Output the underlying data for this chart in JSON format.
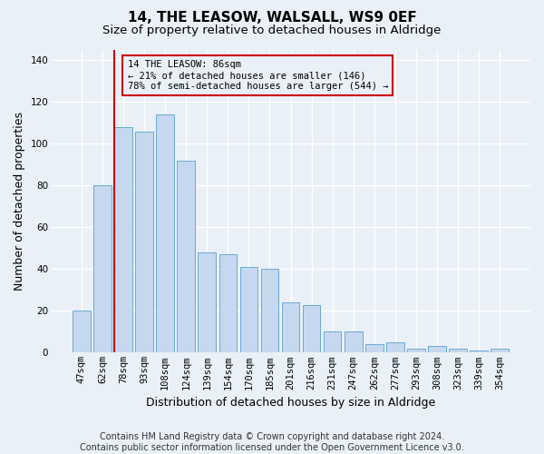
{
  "title": "14, THE LEASOW, WALSALL, WS9 0EF",
  "subtitle": "Size of property relative to detached houses in Aldridge",
  "xlabel": "Distribution of detached houses by size in Aldridge",
  "ylabel": "Number of detached properties",
  "categories": [
    "47sqm",
    "62sqm",
    "78sqm",
    "93sqm",
    "108sqm",
    "124sqm",
    "139sqm",
    "154sqm",
    "170sqm",
    "185sqm",
    "201sqm",
    "216sqm",
    "231sqm",
    "247sqm",
    "262sqm",
    "277sqm",
    "293sqm",
    "308sqm",
    "323sqm",
    "339sqm",
    "354sqm"
  ],
  "values": [
    20,
    80,
    108,
    106,
    114,
    92,
    48,
    47,
    41,
    40,
    24,
    23,
    10,
    10,
    4,
    5,
    2,
    3,
    2,
    1,
    2
  ],
  "bar_color": "#c5d8f0",
  "bar_edge_color": "#6aaad4",
  "background_color": "#eaf0f8",
  "grid_color": "#ffffff",
  "vline_index": 2,
  "vline_color": "#cc0000",
  "annotation_text": "14 THE LEASOW: 86sqm\n← 21% of detached houses are smaller (146)\n78% of semi-detached houses are larger (544) →",
  "annotation_box_color": "#cc0000",
  "ylim": [
    0,
    145
  ],
  "yticks": [
    0,
    20,
    40,
    60,
    80,
    100,
    120,
    140
  ],
  "footer": "Contains HM Land Registry data © Crown copyright and database right 2024.\nContains public sector information licensed under the Open Government Licence v3.0.",
  "title_fontsize": 11,
  "subtitle_fontsize": 9.5,
  "xlabel_fontsize": 9,
  "ylabel_fontsize": 9,
  "tick_fontsize": 7.5,
  "footer_fontsize": 7
}
